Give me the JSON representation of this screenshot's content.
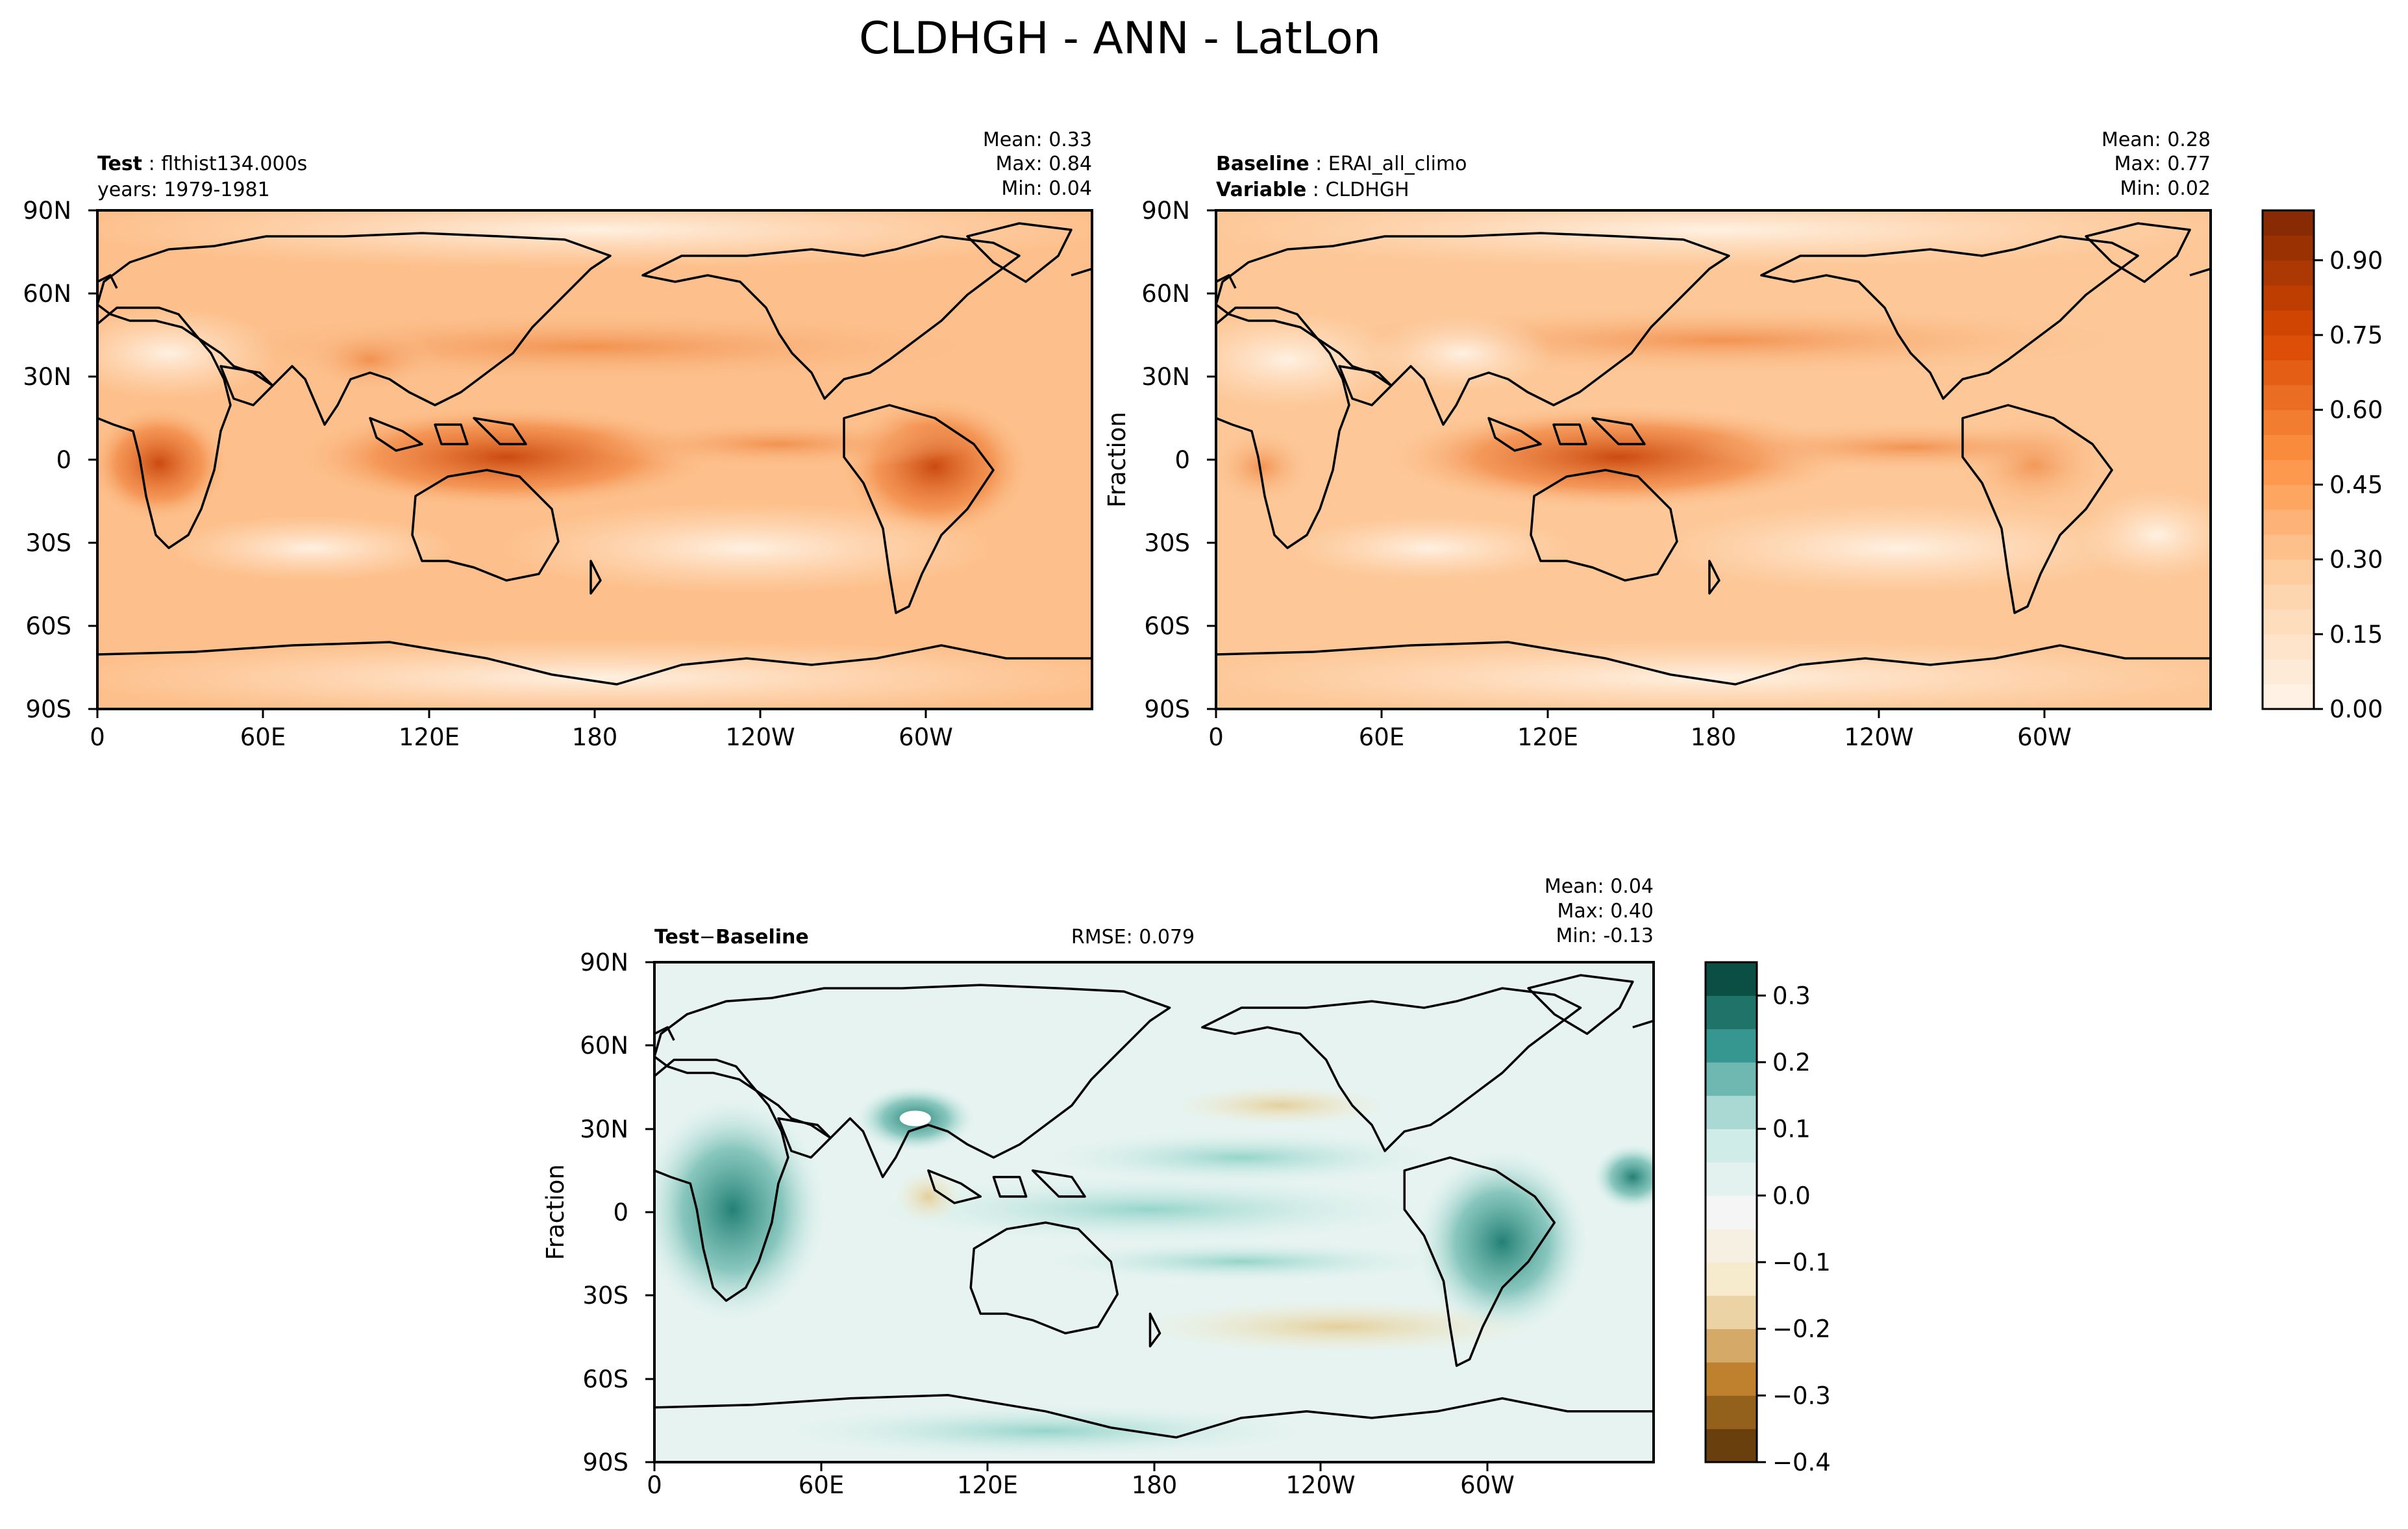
{
  "figure": {
    "title": "CLDHGH - ANN - LatLon"
  },
  "lat_ticks": [
    "90N",
    "60N",
    "30N",
    "0",
    "30S",
    "60S",
    "90S"
  ],
  "lon_ticks": [
    "0",
    "60E",
    "120E",
    "180",
    "120W",
    "60W"
  ],
  "panels": {
    "test": {
      "label_bold": "Test",
      "label_text": "flthist134.000s",
      "line2": "years: 1979-1981",
      "stats": {
        "mean": "Mean:  0.33",
        "max": "Max:  0.84",
        "min": "Min:  0.04"
      },
      "ylabel": ""
    },
    "baseline": {
      "label_bold": "Baseline",
      "label_text": "ERAI_all_climo",
      "line2_bold": "Variable",
      "line2_text": "CLDHGH",
      "stats": {
        "mean": "Mean:  0.28",
        "max": "Max:  0.77",
        "min": "Min:  0.02"
      },
      "ylabel": "Fraction"
    },
    "diff": {
      "label_bold_a": "Test",
      "label_sep": "−",
      "label_bold_b": "Baseline",
      "rmse": "RMSE: 0.079",
      "stats": {
        "mean": "Mean:  0.04",
        "max": "Max:  0.40",
        "min": "Min: -0.13"
      },
      "ylabel": "Fraction"
    }
  },
  "colorbars": {
    "main": {
      "ticks": [
        "0.00",
        "0.15",
        "0.30",
        "0.45",
        "0.60",
        "0.75",
        "0.90"
      ],
      "tick_values": [
        0.0,
        0.15,
        0.3,
        0.45,
        0.6,
        0.75,
        0.9
      ],
      "range": [
        0.0,
        1.0
      ],
      "levels": 20,
      "colormap": "Oranges",
      "colors": [
        "#fff5eb",
        "#fdd3a9",
        "#fd9244",
        "#d94801",
        "#7f2704"
      ]
    },
    "diff": {
      "ticks": [
        "0.3",
        "0.2",
        "0.1",
        "0.0",
        "−0.1",
        "−0.2",
        "−0.3",
        "−0.4"
      ],
      "tick_values": [
        0.3,
        0.2,
        0.1,
        0.0,
        -0.1,
        -0.2,
        -0.3,
        -0.4
      ],
      "range": [
        -0.4,
        0.35
      ],
      "levels": 15,
      "colormap": "BrBG",
      "colors": [
        "#543005",
        "#bf812d",
        "#f6e8c3",
        "#f5f5f5",
        "#c7eae5",
        "#35978f",
        "#003c30"
      ]
    }
  },
  "chart_data": {
    "type": "heatmap",
    "variable": "CLDHGH",
    "season": "ANN",
    "projection": "PlateCarree",
    "x_range": [
      0,
      360
    ],
    "y_range": [
      -90,
      90
    ],
    "maps": [
      {
        "name": "test",
        "mean": 0.33,
        "max": 0.84,
        "min": 0.04
      },
      {
        "name": "baseline",
        "mean": 0.28,
        "max": 0.77,
        "min": 0.02
      },
      {
        "name": "difference",
        "mean": 0.04,
        "max": 0.4,
        "min": -0.13,
        "rmse": 0.079
      }
    ]
  }
}
